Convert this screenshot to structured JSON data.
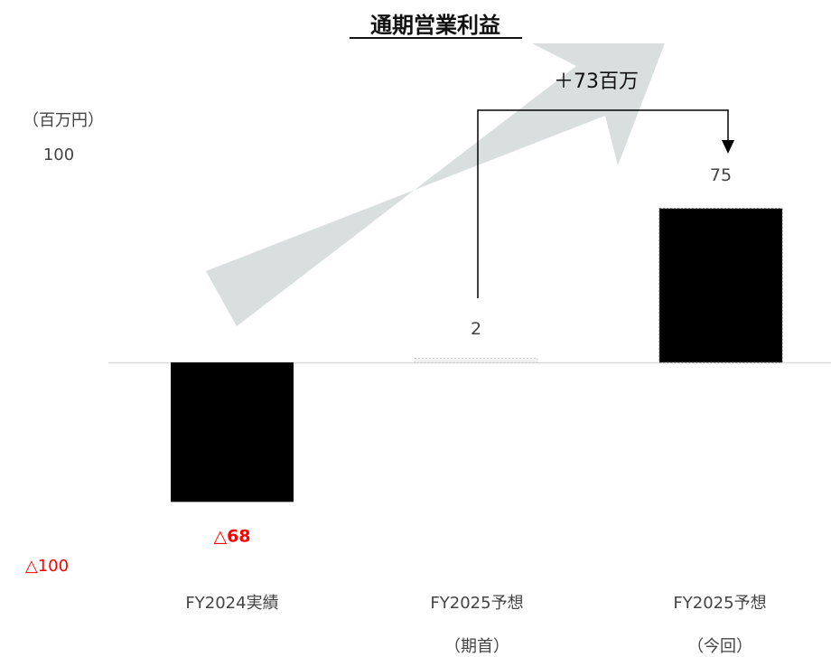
{
  "chart_data": {
    "type": "bar",
    "title": "通期営業利益",
    "unit_label": "（百万円）",
    "y_ticks": [
      {
        "value": 100,
        "label": "100"
      },
      {
        "value": -100,
        "label": "△100"
      }
    ],
    "ylim": [
      -100,
      100
    ],
    "categories": [
      {
        "line1": "FY2024実績",
        "line2": ""
      },
      {
        "line1": "FY2025予想",
        "line2": "（期首）"
      },
      {
        "line1": "FY2025予想",
        "line2": "（今回）"
      }
    ],
    "values": [
      -68,
      2,
      75
    ],
    "value_labels": [
      "△68",
      "2",
      "75"
    ],
    "annotation": {
      "text": "＋73百万",
      "from_index": 1,
      "to_index": 2
    },
    "colors": {
      "bar": "#000000",
      "negative_label": "#ff0000",
      "arrow": "#d9dedf",
      "baseline": "#d9d9d9"
    }
  }
}
